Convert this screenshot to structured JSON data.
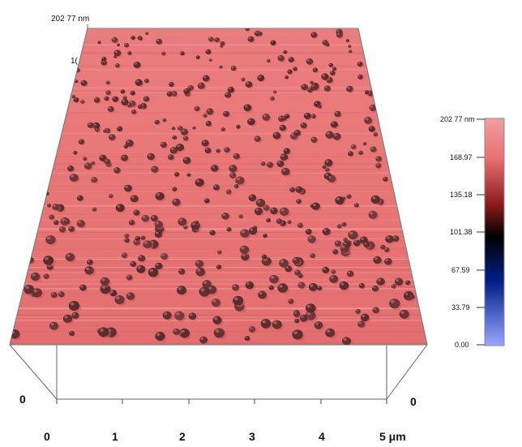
{
  "image": {
    "kind": "AFM 3D topography",
    "surface_top_label": "202 77 nm",
    "corner_mark": "1(",
    "x_axis_ticks": [
      "0",
      "1",
      "2",
      "3",
      "4",
      "5 μm"
    ],
    "left_depth_label": "0",
    "right_depth_label": "0",
    "colorbar": {
      "labels": [
        "202 77 nm",
        "168.97",
        "135.18",
        "101.38",
        "67.59",
        "33.79",
        "0.00"
      ],
      "colors": {
        "top": "#e86e70",
        "upper_mid": "#8b1a1a",
        "middle": "#000000",
        "lower_mid": "#00208a",
        "bottom": "#9aa6ff"
      }
    },
    "colors": {
      "surface": "#e87474",
      "surface_light": "#f29a98",
      "grain": "#5a2a2c",
      "grain_highlight": "#c28a8a",
      "frame": "#555555"
    },
    "grain_count": 420
  }
}
